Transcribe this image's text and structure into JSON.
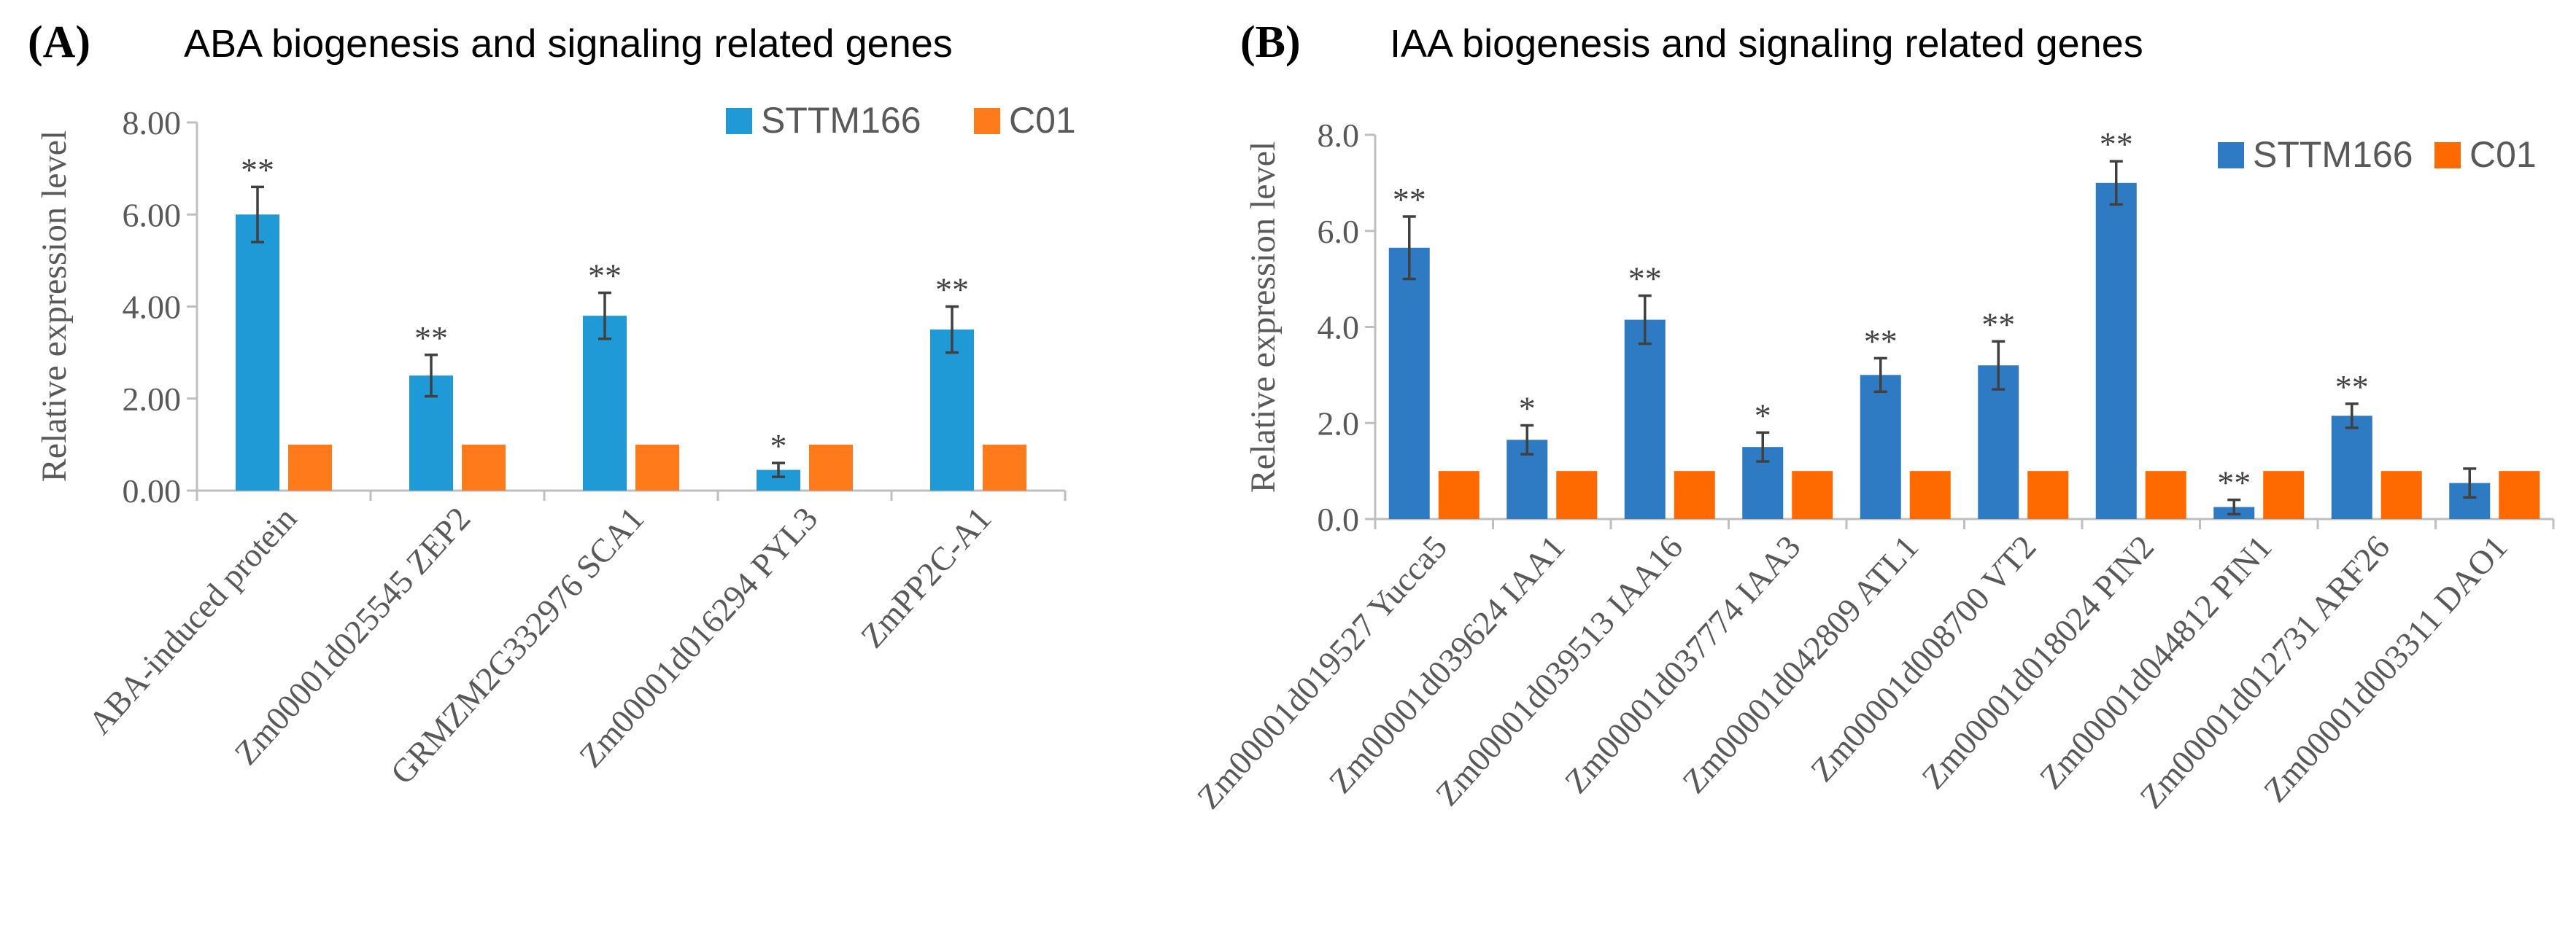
{
  "chart_data": [
    {
      "type": "bar",
      "panel_label": "(A)",
      "title": "ABA biogenesis and signaling related genes",
      "ylabel": "Relative  expression level",
      "xlabel": "",
      "ylim": [
        0,
        8
      ],
      "yticks": [
        "0.00",
        "2.00",
        "4.00",
        "6.00",
        "8.00"
      ],
      "legend": "top-right",
      "grid": false,
      "categories": [
        "ABA-induced protein",
        "Zm00001d025545 ZEP2",
        "GRMZM2G332976 SCA1",
        "Zm00001d016294 PYL3",
        "ZmPP2C-A1"
      ],
      "series": [
        {
          "name": "STTM166",
          "color": "#1f9ad6",
          "values": [
            6.0,
            2.5,
            3.8,
            0.45,
            3.5
          ],
          "errors": [
            0.6,
            0.45,
            0.5,
            0.15,
            0.5
          ],
          "significance": [
            "**",
            "**",
            "**",
            "*",
            "**"
          ]
        },
        {
          "name": "C01",
          "color": "#ff7a1a",
          "values": [
            1.0,
            1.0,
            1.0,
            1.0,
            1.0
          ],
          "errors": [
            0,
            0,
            0,
            0,
            0
          ],
          "significance": [
            "",
            "",
            "",
            "",
            ""
          ]
        }
      ]
    },
    {
      "type": "bar",
      "panel_label": "(B)",
      "title": "IAA biogenesis and signaling related genes",
      "ylabel": "Relative  expression level",
      "xlabel": "",
      "ylim": [
        0,
        8
      ],
      "yticks": [
        "0.0",
        "2.0",
        "4.0",
        "6.0",
        "8.0"
      ],
      "legend": "top-right",
      "grid": false,
      "categories": [
        "Zm00001d019527 Yucca5",
        "Zm00001d039624 IAA1",
        "Zm00001d039513 IAA16",
        "Zm00001d037774 IAA3",
        "Zm00001d042809 ATL1",
        "Zm00001d008700 VT2",
        "Zm00001d018024  PIN2",
        "Zm00001d044812  PIN1",
        "Zm00001d012731 ARF26",
        "Zm00001d003311 DAO1"
      ],
      "series": [
        {
          "name": "STTM166",
          "color": "#2e7bc4",
          "values": [
            5.65,
            1.65,
            4.15,
            1.5,
            3.0,
            3.2,
            7.0,
            0.25,
            2.15,
            0.75
          ],
          "errors": [
            0.65,
            0.3,
            0.5,
            0.3,
            0.35,
            0.5,
            0.45,
            0.15,
            0.25,
            0.3
          ],
          "significance": [
            "**",
            "*",
            "**",
            "*",
            "**",
            "**",
            "**",
            "**",
            "**",
            ""
          ]
        },
        {
          "name": "C01",
          "color": "#ff6a00",
          "values": [
            1.0,
            1.0,
            1.0,
            1.0,
            1.0,
            1.0,
            1.0,
            1.0,
            1.0,
            1.0
          ],
          "errors": [
            0,
            0,
            0,
            0,
            0,
            0,
            0,
            0,
            0,
            0
          ],
          "significance": [
            "",
            "",
            "",
            "",
            "",
            "",
            "",
            "",
            "",
            ""
          ]
        }
      ]
    }
  ]
}
